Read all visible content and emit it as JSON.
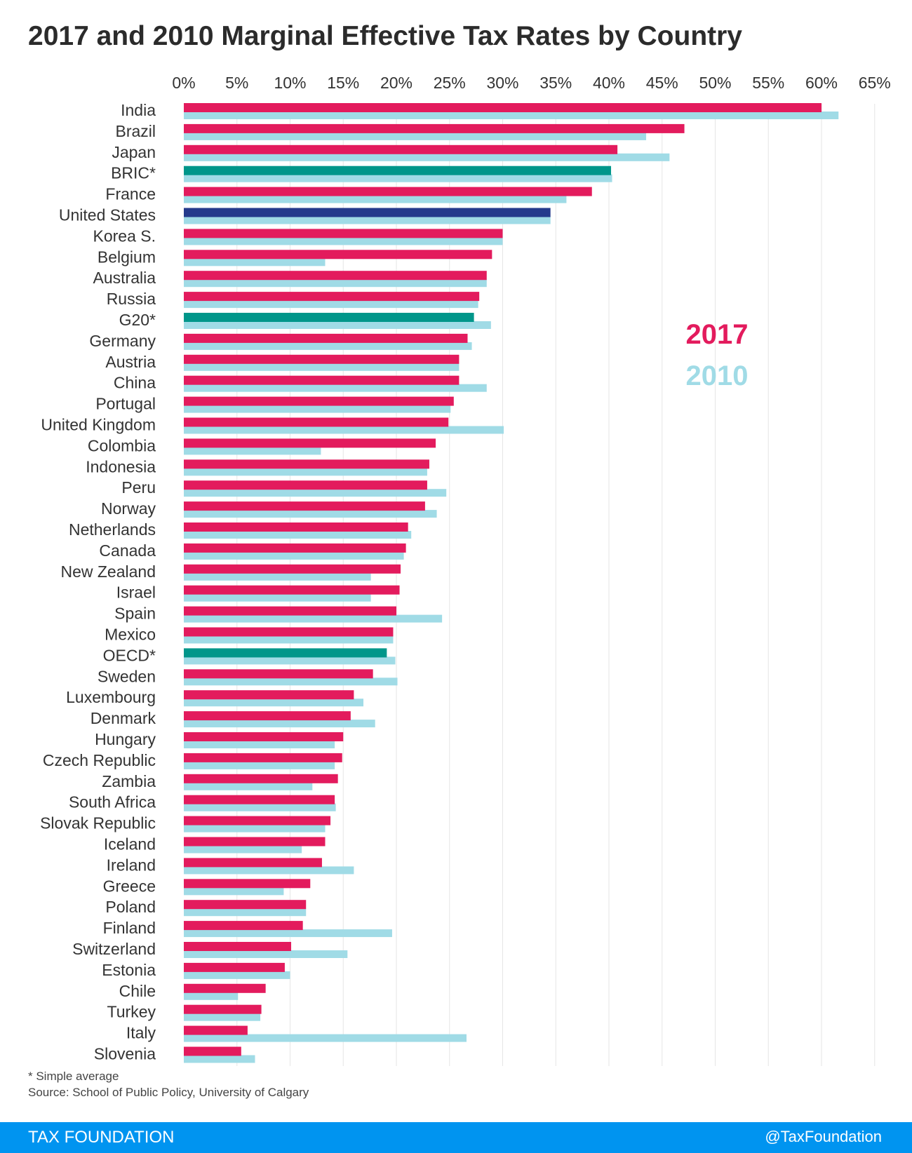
{
  "colors": {
    "series_2017": "#e31b5d",
    "series_2010": "#a0dbe6",
    "aggregate": "#00968a",
    "united_states": "#253a8c",
    "footer": "#0094f0",
    "grid": "#e6e6e6"
  },
  "chart_data": {
    "type": "bar",
    "orientation": "horizontal",
    "title": "2017 and 2010 Marginal Effective Tax Rates by Country",
    "xlabel": "",
    "ylabel": "",
    "xlim": [
      0,
      65
    ],
    "grid": true,
    "x_ticks": [
      "0%",
      "5%",
      "10%",
      "15%",
      "20%",
      "25%",
      "30%",
      "35%",
      "40%",
      "45%",
      "50%",
      "55%",
      "60%",
      "65%"
    ],
    "legend": {
      "placement": "right",
      "entries": [
        "2017",
        "2010"
      ]
    },
    "categories": [
      "India",
      "Brazil",
      "Japan",
      "BRIC*",
      "France",
      "United States",
      "Korea S.",
      "Belgium",
      "Australia",
      "Russia",
      "G20*",
      "Germany",
      "Austria",
      "China",
      "Portugal",
      "United Kingdom",
      "Colombia",
      "Indonesia",
      "Peru",
      "Norway",
      "Netherlands",
      "Canada",
      "New Zealand",
      "Israel",
      "Spain",
      "Mexico",
      "OECD*",
      "Sweden",
      "Luxembourg",
      "Denmark",
      "Hungary",
      "Czech Republic",
      "Zambia",
      "South Africa",
      "Slovak Republic",
      "Iceland",
      "Ireland",
      "Greece",
      "Poland",
      "Finland",
      "Switzerland",
      "Estonia",
      "Chile",
      "Turkey",
      "Italy",
      "Slovenia"
    ],
    "highlight": {
      "BRIC*": "aggregate",
      "G20*": "aggregate",
      "OECD*": "aggregate",
      "United States": "united_states"
    },
    "series": [
      {
        "name": "2017",
        "values": [
          60.0,
          47.1,
          40.8,
          40.2,
          38.4,
          34.5,
          30.0,
          29.0,
          28.5,
          27.8,
          27.3,
          26.7,
          25.9,
          25.9,
          25.4,
          24.9,
          23.7,
          23.1,
          22.9,
          22.7,
          21.1,
          20.9,
          20.4,
          20.3,
          20.0,
          19.7,
          19.1,
          17.8,
          16.0,
          15.7,
          15.0,
          14.9,
          14.5,
          14.2,
          13.8,
          13.3,
          13.0,
          11.9,
          11.5,
          11.2,
          10.1,
          9.5,
          7.7,
          7.3,
          6.0,
          5.4
        ]
      },
      {
        "name": "2010",
        "values": [
          61.6,
          43.5,
          45.7,
          40.3,
          36.0,
          34.5,
          30.0,
          13.3,
          28.5,
          27.7,
          28.9,
          27.1,
          25.9,
          28.5,
          25.1,
          30.1,
          12.9,
          22.9,
          24.7,
          23.8,
          21.4,
          20.7,
          17.6,
          17.6,
          24.3,
          19.7,
          19.9,
          20.1,
          16.9,
          18.0,
          14.2,
          14.2,
          12.1,
          14.3,
          13.3,
          11.1,
          16.0,
          9.4,
          11.5,
          19.6,
          15.4,
          10.0,
          5.1,
          7.2,
          26.6,
          6.7
        ]
      }
    ]
  },
  "footnote": {
    "note": "* Simple average",
    "source": "Source: School of Public Policy, University of Calgary"
  },
  "footer": {
    "brand": "TAX FOUNDATION",
    "handle": "@TaxFoundation"
  }
}
